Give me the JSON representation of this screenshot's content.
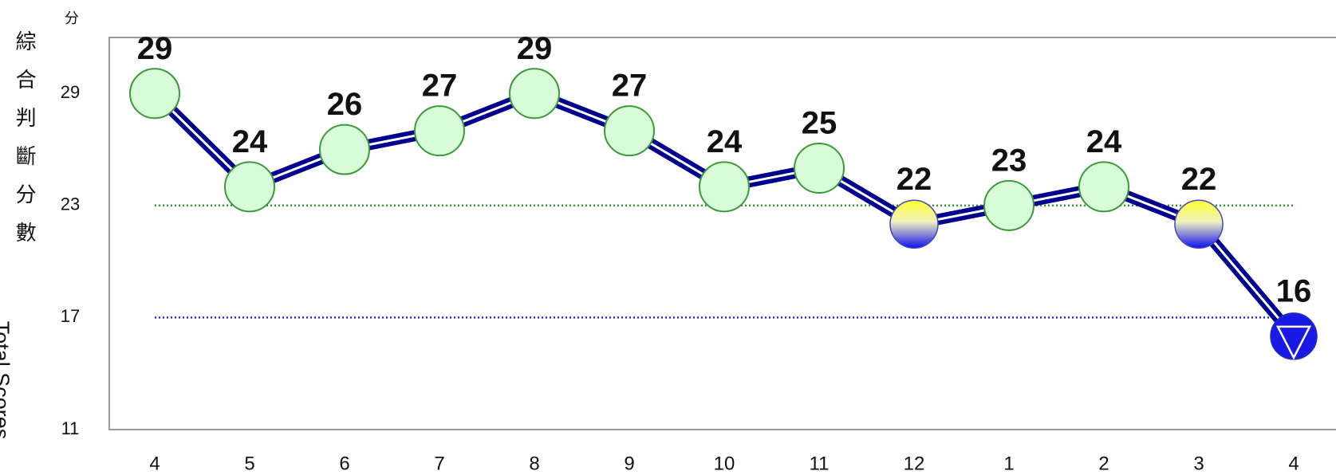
{
  "chart_data": {
    "type": "line",
    "y_axis_label": "綜合判斷分數",
    "y_axis_label_en": "Total Scores",
    "y_unit": "分",
    "categories": [
      "4",
      "5",
      "6",
      "7",
      "8",
      "9",
      "10",
      "11",
      "12",
      "1",
      "2",
      "3",
      "4"
    ],
    "series": [
      {
        "name": "Total Scores",
        "color": "#000090",
        "values": [
          29,
          24,
          26,
          27,
          29,
          27,
          24,
          25,
          22,
          23,
          24,
          22,
          16
        ]
      }
    ],
    "ylim": [
      11,
      32
    ],
    "yticks": [
      11,
      17,
      23,
      29
    ],
    "reference_lines": [
      {
        "value": 23,
        "color": "#2a9a2a"
      },
      {
        "value": 17,
        "color": "#2a2aee"
      }
    ]
  }
}
